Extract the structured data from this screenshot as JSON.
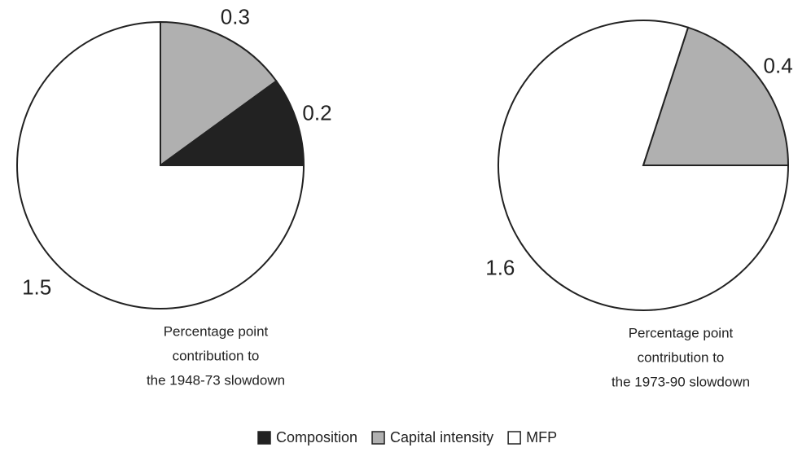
{
  "chart_data": [
    {
      "type": "pie",
      "categories": [
        "Capital intensity",
        "Composition",
        "MFP"
      ],
      "values": [
        0.3,
        0.2,
        1.5
      ],
      "colors": [
        "#b0b0b0",
        "#222222",
        "#ffffff"
      ],
      "caption": [
        "Percentage point",
        "contribution to",
        "the 1948-73 slowdown"
      ]
    },
    {
      "type": "pie",
      "categories": [
        "Capital intensity",
        "MFP"
      ],
      "values": [
        0.4,
        1.6
      ],
      "colors": [
        "#b0b0b0",
        "#ffffff"
      ],
      "caption": [
        "Percentage point",
        "contribution to",
        "the 1973-90 slowdown"
      ]
    }
  ],
  "legend": {
    "items": [
      {
        "name": "Composition",
        "color": "#222222"
      },
      {
        "name": "Capital intensity",
        "color": "#b0b0b0"
      },
      {
        "name": "MFP",
        "color": "#ffffff"
      }
    ]
  }
}
